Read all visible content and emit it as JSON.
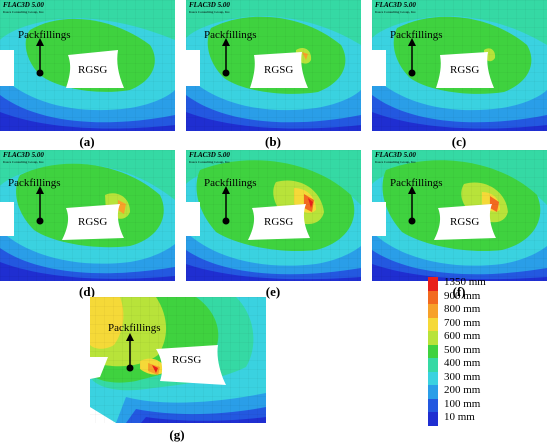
{
  "software_title": "FLAC3D 5.00",
  "software_subtitle": "Itasca Consulting Group, Inc.",
  "labels": {
    "packfillings": "Packfillings",
    "rgsg": "RGSG"
  },
  "panels": [
    {
      "id": "a",
      "caption": "(a)"
    },
    {
      "id": "b",
      "caption": "(b)"
    },
    {
      "id": "c",
      "caption": "(c)"
    },
    {
      "id": "d",
      "caption": "(d)"
    },
    {
      "id": "e",
      "caption": "(e)"
    },
    {
      "id": "f",
      "caption": "(f)"
    },
    {
      "id": "g",
      "caption": "(g)"
    }
  ],
  "legend": [
    {
      "label": "1350 mm",
      "color": "#e8201a"
    },
    {
      "label": "900 mm",
      "color": "#f26a1f"
    },
    {
      "label": "800 mm",
      "color": "#f7a12a"
    },
    {
      "label": "700 mm",
      "color": "#f5d938"
    },
    {
      "label": "600 mm",
      "color": "#b8e33a"
    },
    {
      "label": "500 mm",
      "color": "#3fd23f"
    },
    {
      "label": "400 mm",
      "color": "#35d9a4"
    },
    {
      "label": "300 mm",
      "color": "#3ad2e0"
    },
    {
      "label": "200 mm",
      "color": "#2a9ee8"
    },
    {
      "label": "100 mm",
      "color": "#2358e0"
    },
    {
      "label": "10 mm",
      "color": "#1f2ed1"
    }
  ]
}
